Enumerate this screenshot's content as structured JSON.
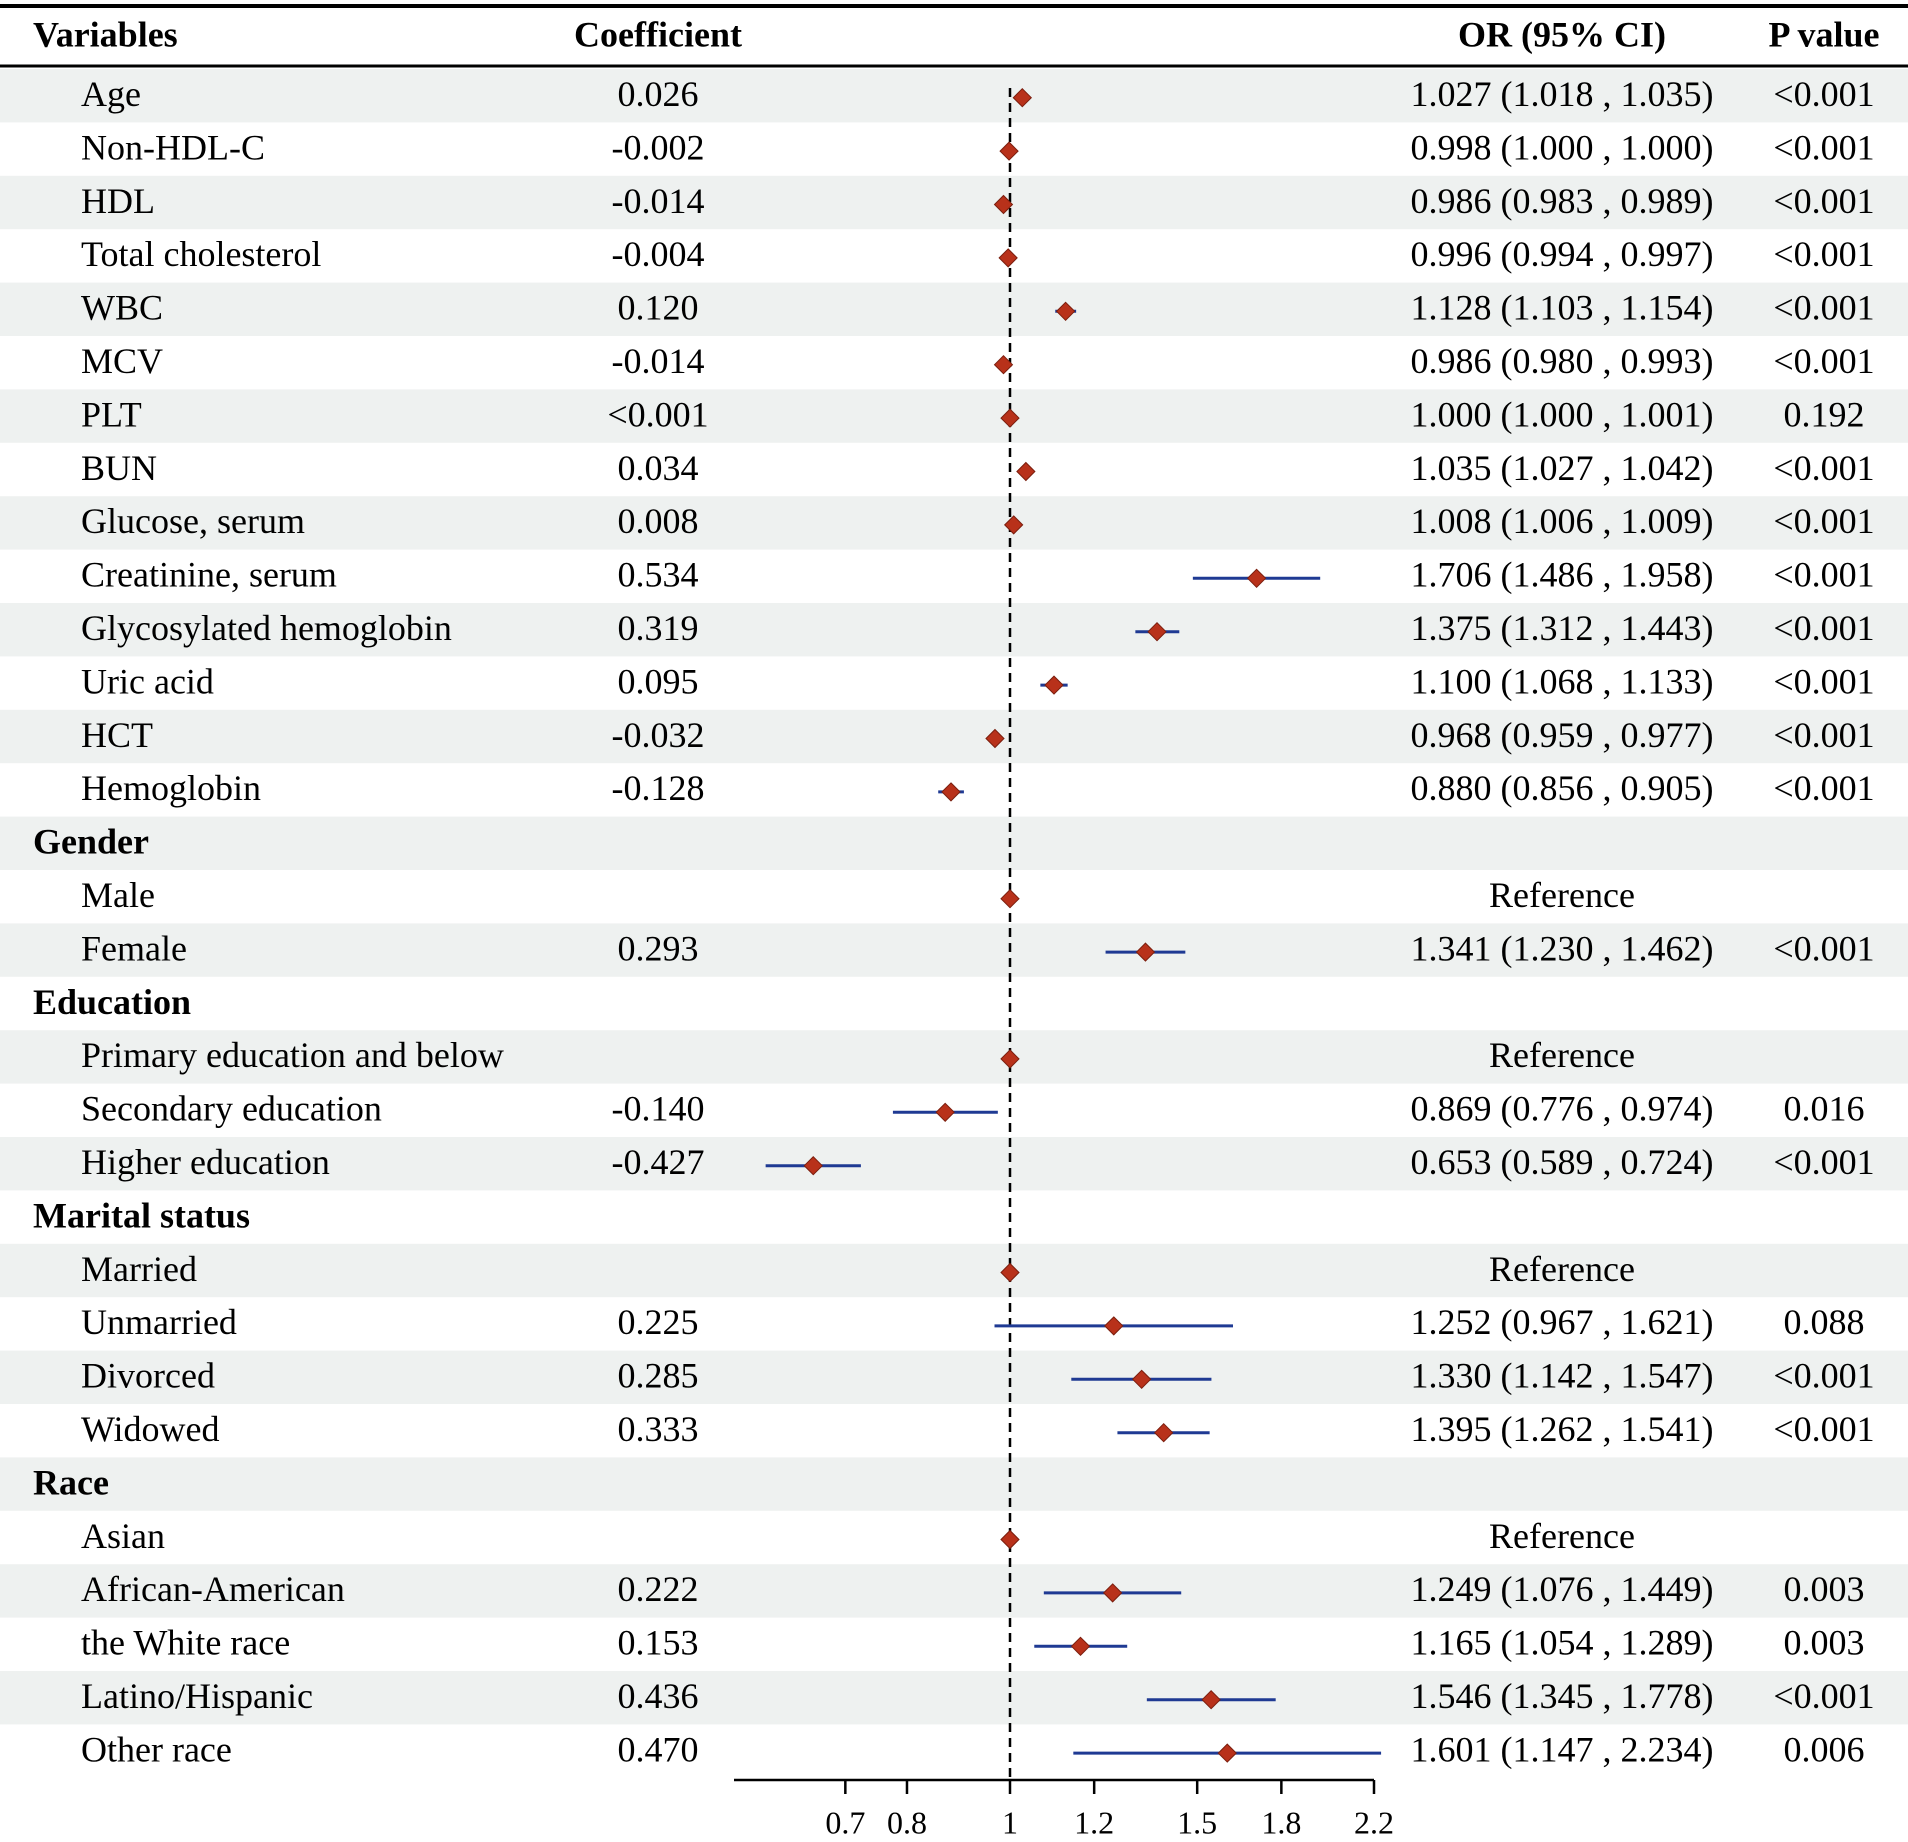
{
  "chart_data": {
    "type": "forest",
    "headers": {
      "variables": "Variables",
      "coefficient": "Coefficient",
      "or": "OR (95% CI)",
      "p": "P value"
    },
    "axis": {
      "scale": "log",
      "reference_value": 1,
      "range": [
        0.55,
        2.2
      ],
      "ticks": [
        0.7,
        0.8,
        1,
        1.2,
        1.5,
        1.8,
        2.2
      ],
      "tick_labels": [
        "0.7",
        "0.8",
        "1",
        "1.2",
        "1.5",
        "1.8",
        "2.2"
      ]
    },
    "colors": {
      "marker": "#B8311A",
      "marker_edge": "#7a1e0e",
      "ci_line": "#1F3A93",
      "band": "#EEF1F0",
      "text": "#1a1a1a"
    },
    "rows": [
      {
        "kind": "item",
        "label": "Age",
        "coef": "0.026",
        "or": 1.027,
        "lo": 1.018,
        "hi": 1.035,
        "or_text": "1.027 (1.018 , 1.035)",
        "p": "<0.001"
      },
      {
        "kind": "item",
        "label": "Non-HDL-C",
        "coef": "-0.002",
        "or": 0.998,
        "lo": 1.0,
        "hi": 1.0,
        "or_text": "0.998 (1.000 , 1.000)",
        "p": "<0.001"
      },
      {
        "kind": "item",
        "label": "HDL",
        "coef": "-0.014",
        "or": 0.986,
        "lo": 0.983,
        "hi": 0.989,
        "or_text": "0.986 (0.983 , 0.989)",
        "p": "<0.001"
      },
      {
        "kind": "item",
        "label": "Total cholesterol",
        "coef": "-0.004",
        "or": 0.996,
        "lo": 0.994,
        "hi": 0.997,
        "or_text": "0.996 (0.994 , 0.997)",
        "p": "<0.001"
      },
      {
        "kind": "item",
        "label": "WBC",
        "coef": "0.120",
        "or": 1.128,
        "lo": 1.103,
        "hi": 1.154,
        "or_text": "1.128 (1.103 , 1.154)",
        "p": "<0.001"
      },
      {
        "kind": "item",
        "label": "MCV",
        "coef": "-0.014",
        "or": 0.986,
        "lo": 0.98,
        "hi": 0.993,
        "or_text": "0.986 (0.980 , 0.993)",
        "p": "<0.001"
      },
      {
        "kind": "item",
        "label": "PLT",
        "coef": "<0.001",
        "or": 1.0,
        "lo": 1.0,
        "hi": 1.001,
        "or_text": "1.000 (1.000 , 1.001)",
        "p": "0.192"
      },
      {
        "kind": "item",
        "label": "BUN",
        "coef": "0.034",
        "or": 1.035,
        "lo": 1.027,
        "hi": 1.042,
        "or_text": "1.035 (1.027 , 1.042)",
        "p": "<0.001"
      },
      {
        "kind": "item",
        "label": "Glucose, serum",
        "coef": "0.008",
        "or": 1.008,
        "lo": 1.006,
        "hi": 1.009,
        "or_text": "1.008 (1.006 , 1.009)",
        "p": "<0.001"
      },
      {
        "kind": "item",
        "label": "Creatinine, serum",
        "coef": "0.534",
        "or": 1.706,
        "lo": 1.486,
        "hi": 1.958,
        "or_text": "1.706 (1.486 , 1.958)",
        "p": "<0.001"
      },
      {
        "kind": "item",
        "label": "Glycosylated hemoglobin",
        "coef": "0.319",
        "or": 1.375,
        "lo": 1.312,
        "hi": 1.443,
        "or_text": "1.375 (1.312 , 1.443)",
        "p": "<0.001"
      },
      {
        "kind": "item",
        "label": "Uric acid",
        "coef": "0.095",
        "or": 1.1,
        "lo": 1.068,
        "hi": 1.133,
        "or_text": "1.100 (1.068 , 1.133)",
        "p": "<0.001"
      },
      {
        "kind": "item",
        "label": "HCT",
        "coef": "-0.032",
        "or": 0.968,
        "lo": 0.959,
        "hi": 0.977,
        "or_text": "0.968 (0.959 , 0.977)",
        "p": "<0.001"
      },
      {
        "kind": "item",
        "label": "Hemoglobin",
        "coef": "-0.128",
        "or": 0.88,
        "lo": 0.856,
        "hi": 0.905,
        "or_text": "0.880 (0.856 , 0.905)",
        "p": "<0.001"
      },
      {
        "kind": "group",
        "label": "Gender"
      },
      {
        "kind": "item",
        "label": "Male",
        "coef": "",
        "or": 1.0,
        "lo": 1.0,
        "hi": 1.0,
        "or_text": "Reference",
        "p": "",
        "ref": true
      },
      {
        "kind": "item",
        "label": "Female",
        "coef": "0.293",
        "or": 1.341,
        "lo": 1.23,
        "hi": 1.462,
        "or_text": "1.341 (1.230 , 1.462)",
        "p": "<0.001"
      },
      {
        "kind": "group",
        "label": "Education"
      },
      {
        "kind": "item",
        "label": "Primary education and below",
        "coef": "",
        "or": 1.0,
        "lo": 1.0,
        "hi": 1.0,
        "or_text": "Reference",
        "p": "",
        "ref": true
      },
      {
        "kind": "item",
        "label": "Secondary education",
        "coef": "-0.140",
        "or": 0.869,
        "lo": 0.776,
        "hi": 0.974,
        "or_text": "0.869 (0.776 , 0.974)",
        "p": "0.016"
      },
      {
        "kind": "item",
        "label": "Higher education",
        "coef": "-0.427",
        "or": 0.653,
        "lo": 0.589,
        "hi": 0.724,
        "or_text": "0.653 (0.589 , 0.724)",
        "p": "<0.001"
      },
      {
        "kind": "group",
        "label": "Marital status"
      },
      {
        "kind": "item",
        "label": "Married",
        "coef": "",
        "or": 1.0,
        "lo": 1.0,
        "hi": 1.0,
        "or_text": "Reference",
        "p": "",
        "ref": true
      },
      {
        "kind": "item",
        "label": "Unmarried",
        "coef": "0.225",
        "or": 1.252,
        "lo": 0.967,
        "hi": 1.621,
        "or_text": "1.252 (0.967 , 1.621)",
        "p": "0.088"
      },
      {
        "kind": "item",
        "label": "Divorced",
        "coef": "0.285",
        "or": 1.33,
        "lo": 1.142,
        "hi": 1.547,
        "or_text": "1.330 (1.142 , 1.547)",
        "p": "<0.001"
      },
      {
        "kind": "item",
        "label": "Widowed",
        "coef": "0.333",
        "or": 1.395,
        "lo": 1.262,
        "hi": 1.541,
        "or_text": "1.395 (1.262 , 1.541)",
        "p": "<0.001"
      },
      {
        "kind": "group",
        "label": "Race"
      },
      {
        "kind": "item",
        "label": "Asian",
        "coef": "",
        "or": 1.0,
        "lo": 1.0,
        "hi": 1.0,
        "or_text": "Reference",
        "p": "",
        "ref": true
      },
      {
        "kind": "item",
        "label": "African-American",
        "coef": "0.222",
        "or": 1.249,
        "lo": 1.076,
        "hi": 1.449,
        "or_text": "1.249 (1.076 , 1.449)",
        "p": "0.003"
      },
      {
        "kind": "item",
        "label": "the White race",
        "coef": "0.153",
        "or": 1.165,
        "lo": 1.054,
        "hi": 1.289,
        "or_text": "1.165 (1.054 , 1.289)",
        "p": "0.003"
      },
      {
        "kind": "item",
        "label": "Latino/Hispanic",
        "coef": "0.436",
        "or": 1.546,
        "lo": 1.345,
        "hi": 1.778,
        "or_text": "1.546 (1.345 , 1.778)",
        "p": "<0.001"
      },
      {
        "kind": "item",
        "label": "Other race",
        "coef": "0.470",
        "or": 1.601,
        "lo": 1.147,
        "hi": 2.234,
        "or_text": "1.601 (1.147 , 2.234)",
        "p": "0.006"
      }
    ]
  }
}
